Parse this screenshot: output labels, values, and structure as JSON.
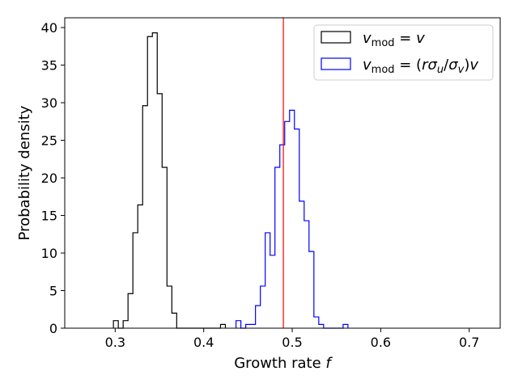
{
  "chart_data": {
    "type": "step-histogram",
    "xlabel": "Growth rate f",
    "ylabel": "Probability density",
    "xlim": [
      0.243,
      0.735
    ],
    "ylim": [
      0,
      41.3
    ],
    "xticks": [
      0.3,
      0.4,
      0.5,
      0.6,
      0.7
    ],
    "xtick_labels": [
      "0.3",
      "0.4",
      "0.5",
      "0.6",
      "0.7"
    ],
    "yticks": [
      0,
      5,
      10,
      15,
      20,
      25,
      30,
      35,
      40
    ],
    "ytick_labels": [
      "0",
      "5",
      "10",
      "15",
      "20",
      "25",
      "30",
      "35",
      "40"
    ],
    "grid": false,
    "legend_position": "top-right",
    "bin_width": 0.0055,
    "vline": {
      "x": 0.49,
      "color": "#ff0000"
    },
    "series": [
      {
        "name": "v_mod = v",
        "legend": {
          "base": "v",
          "sub": "mod",
          "rhs": "= v"
        },
        "color": "#000000",
        "bin_start": 0.298,
        "values": [
          1.0,
          0,
          1.0,
          4.6,
          12.7,
          16.4,
          29.6,
          38.8,
          39.3,
          31.2,
          21.4,
          5.6,
          2.0,
          0,
          0,
          0,
          0,
          0,
          0,
          0,
          0,
          0,
          0.5
        ]
      },
      {
        "name": "v_mod = (rσu/σv)v",
        "legend": {
          "base": "v",
          "sub": "mod",
          "rhs": "= (rσ",
          "rhs_sub1": "u",
          "mid": "/σ",
          "rhs_sub2": "v",
          "tail": ")v"
        },
        "color": "#0000ff",
        "bin_start": 0.4365,
        "values": [
          1.0,
          0,
          0.5,
          0.5,
          3.0,
          5.6,
          12.7,
          9.7,
          21.4,
          24.4,
          27.5,
          29.0,
          26.5,
          16.9,
          14.3,
          10.2,
          1.5,
          0.5,
          0,
          0,
          0,
          0,
          0.5
        ]
      }
    ]
  }
}
